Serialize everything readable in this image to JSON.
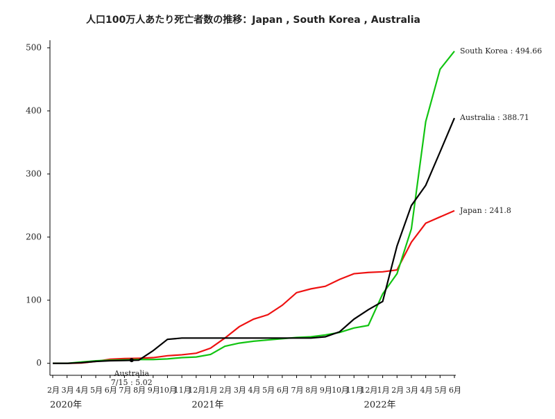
{
  "chart_data": {
    "type": "line",
    "title": "人口100万人あたり死亡者数の推移：Japan , South Korea , Australia",
    "categories": [
      "2月",
      "3月",
      "4月",
      "5月",
      "6月",
      "7月",
      "8月",
      "9月",
      "10月",
      "11月",
      "12月",
      "1月",
      "2月",
      "3月",
      "4月",
      "5月",
      "6月",
      "7月",
      "8月",
      "9月",
      "10月",
      "11月",
      "12月",
      "1月",
      "2月",
      "3月",
      "4月",
      "5月",
      "6月"
    ],
    "category_groups": [
      {
        "label": "2020年",
        "start": 0
      },
      {
        "label": "2021年",
        "start": 11
      },
      {
        "label": "2022年",
        "start": 23
      }
    ],
    "series": [
      {
        "name": "Japan",
        "color": "#ee1111",
        "end_label": "Japan : 241.8",
        "values": [
          0,
          0,
          0.5,
          3,
          6.5,
          7.5,
          8,
          9,
          12,
          13.5,
          16,
          24,
          40,
          58,
          70,
          77,
          92,
          112,
          118,
          122,
          133,
          142,
          144,
          145,
          148,
          192,
          222,
          232,
          241.8
        ]
      },
      {
        "name": "South Korea",
        "color": "#11c411",
        "end_label": "South Korea : 494.66",
        "values": [
          0,
          0,
          2,
          4,
          5,
          5.5,
          6,
          6,
          7,
          9,
          10,
          14,
          27,
          32,
          35,
          37,
          39,
          41,
          42,
          45,
          49,
          56,
          60,
          110,
          142,
          213,
          383,
          466,
          494.66
        ]
      },
      {
        "name": "Australia",
        "color": "#000000",
        "end_label": "Australia : 388.71",
        "values": [
          0,
          0,
          1,
          3,
          4,
          4.5,
          5,
          20,
          38,
          40,
          40,
          40,
          40,
          40,
          40,
          40,
          40,
          40,
          40,
          42,
          50,
          70,
          85,
          98,
          186,
          250,
          282,
          335,
          388.71
        ]
      }
    ],
    "annotation": {
      "lines": [
        "Australia",
        "7/15 : 5.02"
      ],
      "value": 5.02
    },
    "ylim": [
      -19,
      512
    ],
    "yticks": [
      0,
      100,
      200,
      300,
      400,
      500
    ]
  }
}
